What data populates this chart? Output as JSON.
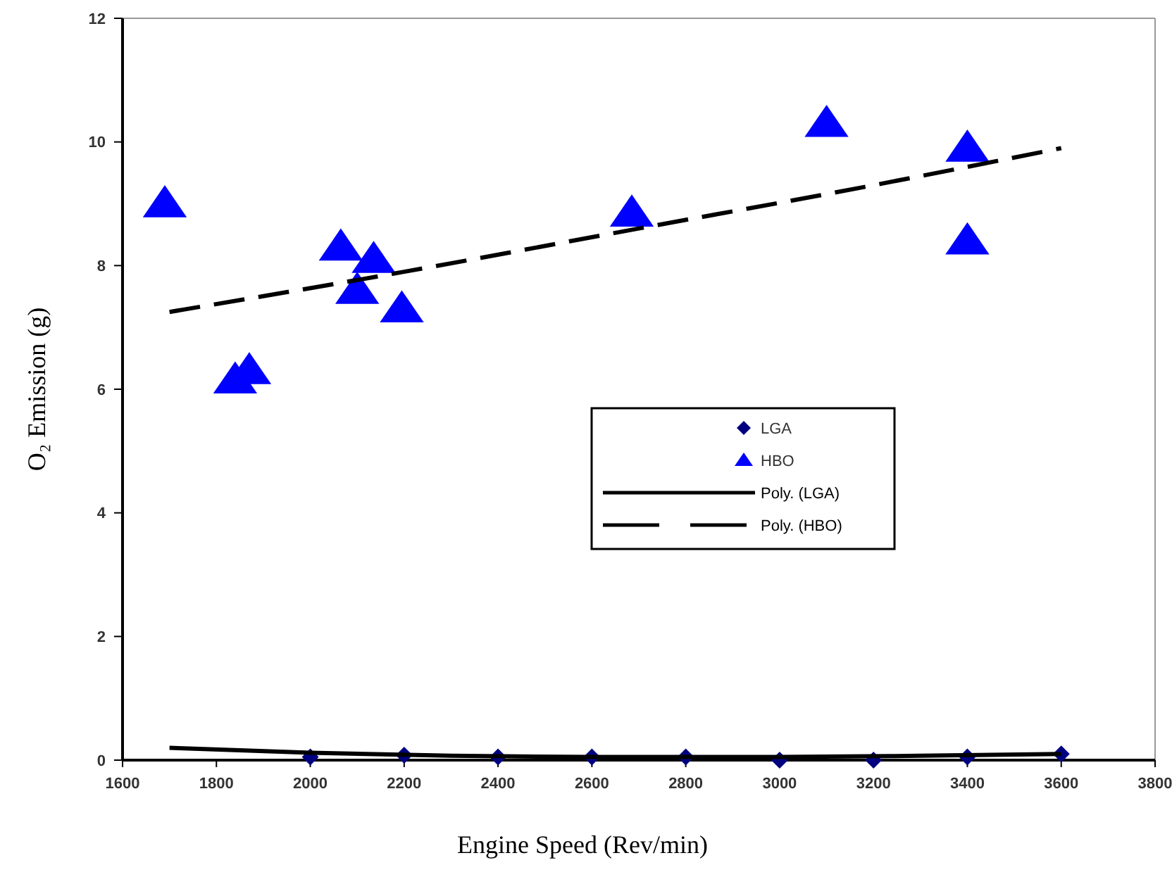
{
  "chart_data": {
    "type": "scatter",
    "xlabel": "Engine Speed (Rev/min)",
    "ylabel": "O₂ Emission (g)",
    "xlim": [
      1600,
      3800
    ],
    "ylim": [
      0,
      12
    ],
    "xticks": [
      1600,
      1800,
      2000,
      2200,
      2400,
      2600,
      2800,
      3000,
      3200,
      3400,
      3600,
      3800
    ],
    "yticks": [
      0,
      2,
      4,
      6,
      8,
      10,
      12
    ],
    "grid": false,
    "legend": "right",
    "series": [
      {
        "name": "LGA",
        "marker": "diamond",
        "color": "#000080",
        "x": [
          2000,
          2200,
          2400,
          2600,
          2800,
          3000,
          3200,
          3400,
          3600
        ],
        "values": [
          0.05,
          0.08,
          0.05,
          0.05,
          0.05,
          0,
          0,
          0.05,
          0.1
        ]
      },
      {
        "name": "HBO",
        "marker": "triangle",
        "color": "#0000ff",
        "x": [
          1690,
          1840,
          1870,
          2065,
          2100,
          2135,
          2195,
          2685,
          3100,
          3400,
          3400
        ],
        "values": [
          9,
          6.15,
          6.3,
          8.3,
          7.6,
          8.1,
          7.3,
          8.85,
          10.3,
          9.9,
          8.4
        ]
      },
      {
        "name": "Poly. (LGA)",
        "type": "line",
        "marker": "none",
        "line_style": "solid",
        "color": "#000000",
        "x": [
          1700,
          2000,
          2300,
          2600,
          3000,
          3300,
          3600
        ],
        "values": [
          0.2,
          0.12,
          0.07,
          0.05,
          0.05,
          0.07,
          0.1
        ]
      },
      {
        "name": "Poly. (HBO)",
        "type": "line",
        "marker": "none",
        "line_style": "dashed",
        "color": "#000000",
        "x": [
          1700,
          2200,
          2700,
          3200,
          3600
        ],
        "values": [
          7.25,
          7.9,
          8.6,
          9.3,
          9.9
        ]
      }
    ]
  }
}
